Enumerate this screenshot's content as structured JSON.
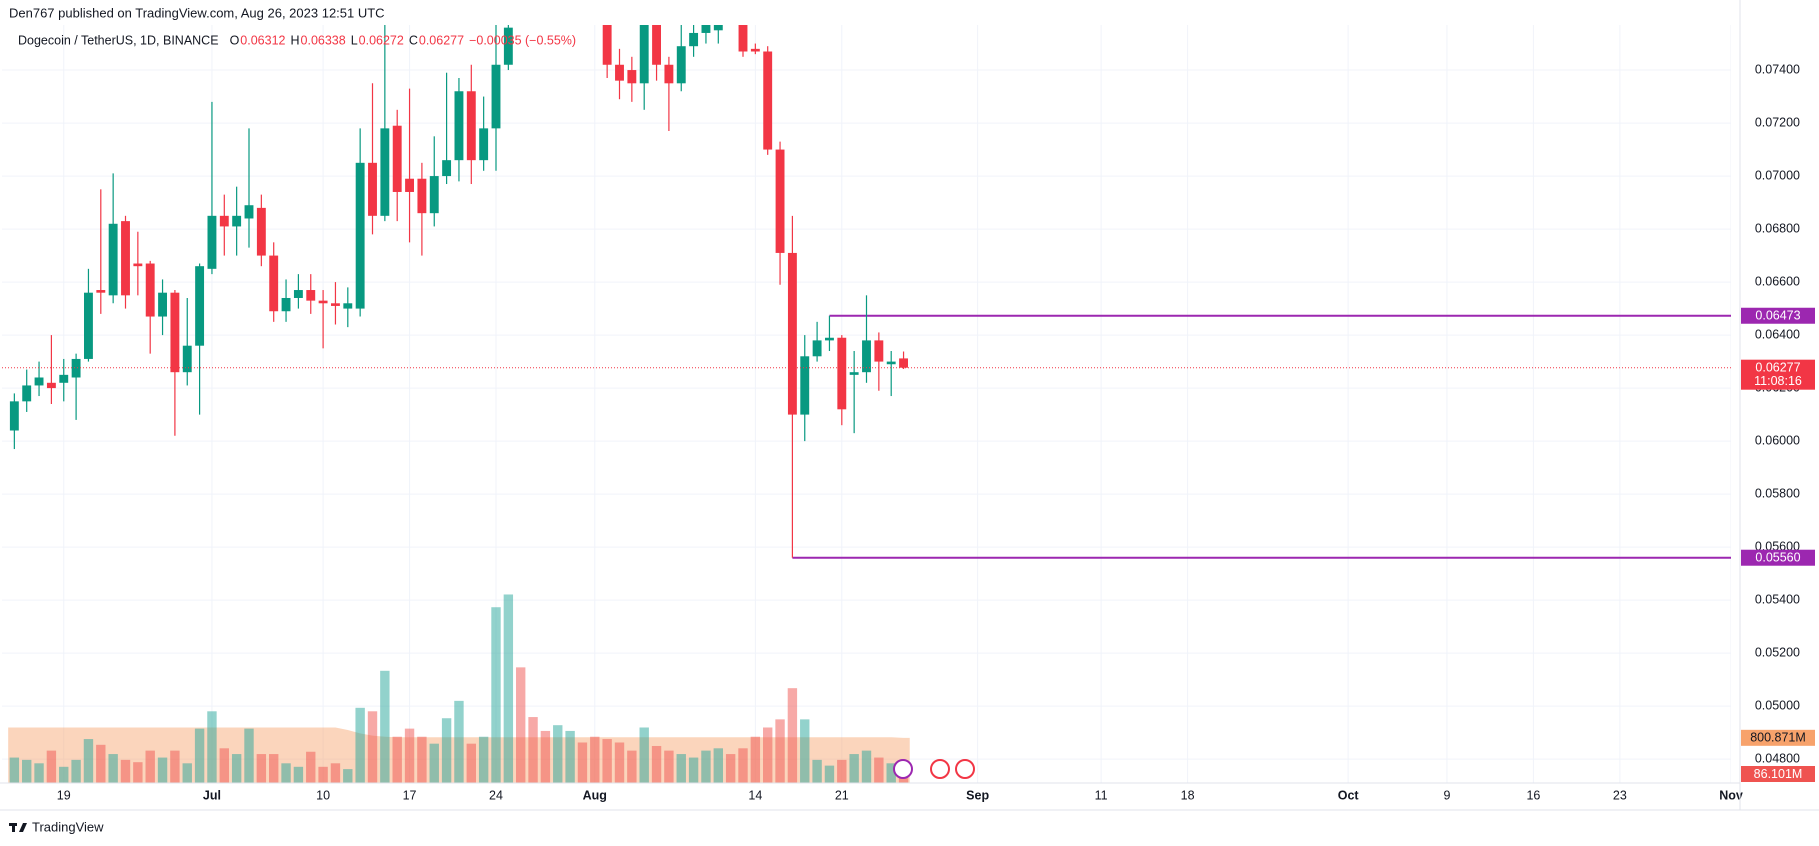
{
  "header": {
    "published": "Den767 published on TradingView.com, Aug 26, 2023 12:51 UTC"
  },
  "footer": {
    "brand": "TradingView"
  },
  "chart_data": {
    "type": "candlestick",
    "legend": {
      "title": "Dogecoin / TetherUS, 1D, BINANCE",
      "labels": [
        "O",
        "H",
        "L",
        "C"
      ],
      "change": "−0.00035 (−0.55%)"
    },
    "up_color": "#089981",
    "down_color": "#f23645",
    "x": [
      "Jun 15",
      "Jun 16",
      "Jun 17",
      "Jun 18",
      "Jun 19",
      "Jun 20",
      "Jun 21",
      "Jun 22",
      "Jun 23",
      "Jun 24",
      "Jun 25",
      "Jun 26",
      "Jun 27",
      "Jun 28",
      "Jun 29",
      "Jun 30",
      "Jul 1",
      "Jul 2",
      "Jul 3",
      "Jul 4",
      "Jul 5",
      "Jul 6",
      "Jul 7",
      "Jul 8",
      "Jul 9",
      "Jul 10",
      "Jul 11",
      "Jul 12",
      "Jul 13",
      "Jul 14",
      "Jul 15",
      "Jul 16",
      "Jul 17",
      "Jul 18",
      "Jul 19",
      "Jul 20",
      "Jul 21",
      "Jul 22",
      "Jul 23",
      "Jul 24",
      "Jul 25",
      "Jul 26",
      "Jul 27",
      "Jul 28",
      "Jul 29",
      "Jul 30",
      "Jul 31",
      "Aug 1",
      "Aug 2",
      "Aug 3",
      "Aug 4",
      "Aug 5",
      "Aug 6",
      "Aug 7",
      "Aug 8",
      "Aug 9",
      "Aug 10",
      "Aug 11",
      "Aug 12",
      "Aug 13",
      "Aug 14",
      "Aug 15",
      "Aug 16",
      "Aug 17",
      "Aug 18",
      "Aug 19",
      "Aug 20",
      "Aug 21",
      "Aug 22",
      "Aug 23",
      "Aug 24",
      "Aug 25",
      "Aug 26"
    ],
    "open": [
      0.0604,
      0.0615,
      0.0621,
      0.0622,
      0.0622,
      0.0624,
      0.0631,
      0.0657,
      0.0655,
      0.0683,
      0.0667,
      0.0667,
      0.0647,
      0.0656,
      0.0626,
      0.0636,
      0.0665,
      0.0685,
      0.0681,
      0.0684,
      0.0688,
      0.067,
      0.0649,
      0.0654,
      0.0657,
      0.0653,
      0.0652,
      0.065,
      0.065,
      0.0705,
      0.0685,
      0.0719,
      0.0699,
      0.0699,
      0.0686,
      0.07,
      0.0706,
      0.0732,
      0.0706,
      0.0718,
      0.0742,
      null,
      null,
      null,
      null,
      null,
      null,
      null,
      0.0757,
      0.0742,
      0.074,
      0.0735,
      0.0757,
      0.0742,
      0.0735,
      0.0749,
      0.0754,
      0.0755,
      null,
      0.0757,
      0.0748,
      0.0747,
      0.071,
      0.0671,
      0.061,
      0.0632,
      0.0638,
      0.0639,
      0.0625,
      0.0626,
      0.0638,
      0.0629,
      0.06312
    ],
    "high": [
      0.0618,
      0.0627,
      0.063,
      0.064,
      0.0631,
      0.0633,
      0.0665,
      0.0695,
      0.0701,
      0.0685,
      0.0679,
      0.0668,
      0.0661,
      0.0657,
      0.0654,
      0.0667,
      0.0728,
      0.0693,
      0.0696,
      0.0718,
      0.0693,
      0.0675,
      0.0661,
      0.0663,
      0.0663,
      0.0657,
      0.066,
      0.0658,
      0.0718,
      0.0735,
      0.0757,
      0.0725,
      0.0733,
      0.0705,
      0.0715,
      0.0739,
      0.0737,
      0.0742,
      0.073,
      0.0757,
      0.0757,
      null,
      null,
      null,
      null,
      null,
      null,
      null,
      0.0757,
      0.0748,
      0.0745,
      0.0757,
      0.0757,
      0.0745,
      0.0757,
      0.0757,
      0.0757,
      0.0757,
      null,
      0.0757,
      0.075,
      0.0749,
      0.0713,
      0.0685,
      0.064,
      0.0645,
      0.06473,
      0.064,
      0.0634,
      0.0655,
      0.0641,
      0.0634,
      0.06338
    ],
    "low": [
      0.0597,
      0.0611,
      0.0617,
      0.0614,
      0.0615,
      0.0608,
      0.063,
      0.0648,
      0.0652,
      0.065,
      0.0655,
      0.0633,
      0.064,
      0.0602,
      0.0621,
      0.061,
      0.0663,
      0.067,
      0.067,
      0.0673,
      0.0666,
      0.0645,
      0.0645,
      0.065,
      0.0648,
      0.0635,
      0.0644,
      0.0643,
      0.0647,
      0.0678,
      0.0683,
      0.0683,
      0.0675,
      0.067,
      0.0681,
      0.0697,
      0.0698,
      0.0697,
      0.0702,
      0.0702,
      0.074,
      null,
      null,
      null,
      null,
      null,
      null,
      null,
      0.0737,
      0.0729,
      0.0728,
      0.0725,
      0.0736,
      0.0717,
      0.0732,
      0.0745,
      0.075,
      0.075,
      null,
      0.0745,
      0.0746,
      0.0708,
      0.0659,
      0.0556,
      0.06,
      0.063,
      0.0634,
      0.0606,
      0.0603,
      0.0622,
      0.0619,
      0.0617,
      0.06272
    ],
    "close": [
      0.0615,
      0.0621,
      0.0624,
      0.062,
      0.0625,
      0.0631,
      0.0656,
      0.0656,
      0.0682,
      0.0655,
      0.0666,
      0.0647,
      0.0656,
      0.0626,
      0.0636,
      0.0666,
      0.0685,
      0.0681,
      0.0685,
      0.0689,
      0.067,
      0.0649,
      0.0654,
      0.0657,
      0.0653,
      0.0652,
      0.0651,
      0.0652,
      0.0705,
      0.0685,
      0.0718,
      0.0694,
      0.0694,
      0.0686,
      0.07,
      0.0706,
      0.0732,
      0.0706,
      0.0718,
      0.0742,
      0.0756,
      null,
      null,
      null,
      null,
      null,
      null,
      null,
      0.0742,
      0.0736,
      0.0735,
      0.0757,
      0.0742,
      0.0735,
      0.0749,
      0.0754,
      0.0757,
      0.0757,
      null,
      0.0747,
      0.0747,
      0.071,
      0.0671,
      0.061,
      0.0632,
      0.0638,
      0.0639,
      0.0612,
      0.0626,
      0.0638,
      0.063,
      0.063,
      0.06277
    ],
    "volume": {
      "up_color": "#26a69a",
      "down_color": "#ef5350",
      "ma_color": "#f7a26b",
      "ylim": [
        0,
        3900
      ],
      "values": [
        451,
        410,
        349,
        574,
        287,
        410,
        779,
        677,
        513,
        410,
        369,
        574,
        451,
        574,
        349,
        964,
        1271,
        615,
        513,
        964,
        513,
        513,
        349,
        287,
        554,
        287,
        349,
        246,
        1333,
        1271,
        1989,
        820,
        964,
        820,
        697,
        1148,
        1456,
        697,
        820,
        3116,
        3342,
        2050,
        1169,
        923,
        1025,
        923,
        718,
        820,
        779,
        718,
        574,
        984,
        656,
        574,
        513,
        451,
        574,
        615,
        513,
        615,
        820,
        984,
        1128,
        1681,
        1128,
        410,
        308,
        410,
        513,
        574,
        451,
        349,
        86.101
      ],
      "up": [
        true,
        true,
        true,
        false,
        true,
        true,
        true,
        false,
        true,
        false,
        false,
        false,
        true,
        false,
        true,
        true,
        true,
        false,
        true,
        true,
        false,
        false,
        true,
        true,
        false,
        false,
        false,
        true,
        true,
        false,
        true,
        false,
        false,
        false,
        true,
        true,
        true,
        false,
        true,
        true,
        true,
        false,
        false,
        false,
        true,
        true,
        false,
        false,
        false,
        false,
        false,
        true,
        false,
        false,
        true,
        true,
        true,
        true,
        false,
        false,
        false,
        false,
        false,
        false,
        true,
        true,
        true,
        false,
        true,
        true,
        false,
        true,
        false
      ],
      "ma": [
        984,
        984,
        984,
        984,
        984,
        984,
        984,
        984,
        984,
        984,
        984,
        984,
        984,
        984,
        984,
        984,
        984,
        984,
        984,
        984,
        984,
        984,
        984,
        984,
        984,
        984,
        984,
        940,
        880,
        840,
        820,
        810,
        810,
        810,
        810,
        810,
        810,
        810,
        810,
        810,
        810,
        810,
        810,
        810,
        810,
        810,
        810,
        810,
        810,
        810,
        810,
        810,
        810,
        810,
        810,
        810,
        810,
        810,
        810,
        810,
        810,
        810,
        810,
        810,
        810,
        810,
        810,
        810,
        810,
        810,
        810,
        810,
        800.871
      ],
      "label": "86.101M",
      "ma_label": "800.871M"
    },
    "ylim": [
      0.0471,
      0.0757
    ],
    "yticks": [
      {
        "value": 0.048,
        "label": "0.04800"
      },
      {
        "value": 0.05,
        "label": "0.05000"
      },
      {
        "value": 0.052,
        "label": "0.05200"
      },
      {
        "value": 0.054,
        "label": "0.05400"
      },
      {
        "value": 0.056,
        "label": "0.05600"
      },
      {
        "value": 0.058,
        "label": "0.05800"
      },
      {
        "value": 0.06,
        "label": "0.06000"
      },
      {
        "value": 0.062,
        "label": "0.06200"
      },
      {
        "value": 0.064,
        "label": "0.06400"
      },
      {
        "value": 0.066,
        "label": "0.06600"
      },
      {
        "value": 0.068,
        "label": "0.06800"
      },
      {
        "value": 0.07,
        "label": "0.07000"
      },
      {
        "value": 0.072,
        "label": "0.07200"
      },
      {
        "value": 0.074,
        "label": "0.07400"
      }
    ],
    "xlim": [
      "Jun 14",
      "Nov 1"
    ],
    "xticks": [
      {
        "value": "Jun 19",
        "label": "19"
      },
      {
        "value": "Jul 1",
        "label": "Jul"
      },
      {
        "value": "Jul 10",
        "label": "10"
      },
      {
        "value": "Jul 17",
        "label": "17"
      },
      {
        "value": "Jul 24",
        "label": "24"
      },
      {
        "value": "Aug 1",
        "label": "Aug"
      },
      {
        "value": "Aug 14",
        "label": "14"
      },
      {
        "value": "Aug 21",
        "label": "21"
      },
      {
        "value": "Sep 1",
        "label": "Sep"
      },
      {
        "value": "Sep 11",
        "label": "11"
      },
      {
        "value": "Sep 18",
        "label": "18"
      },
      {
        "value": "Oct 1",
        "label": "Oct"
      },
      {
        "value": "Oct 9",
        "label": "9"
      },
      {
        "value": "Oct 16",
        "label": "16"
      },
      {
        "value": "Oct 23",
        "label": "23"
      },
      {
        "value": "Nov 1",
        "label": "Nov"
      }
    ],
    "grid": true,
    "levels": [
      {
        "value": 0.06473,
        "label": "0.06473",
        "start": "Aug 20",
        "color": "#9c27b0"
      },
      {
        "value": 0.0556,
        "label": "0.05560",
        "start": "Aug 17",
        "color": "#9c27b0"
      }
    ],
    "countdown": "11:08:16"
  }
}
